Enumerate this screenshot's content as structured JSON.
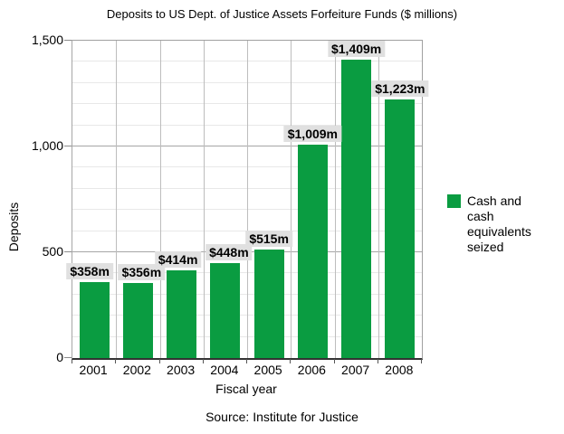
{
  "chart_data": {
    "type": "bar",
    "title": "Deposits to US Dept. of Justice Assets Forfeiture Funds ($ millions)",
    "categories": [
      "2001",
      "2002",
      "2003",
      "2004",
      "2005",
      "2006",
      "2007",
      "2008"
    ],
    "values": [
      358,
      356,
      414,
      448,
      515,
      1009,
      1409,
      1223
    ],
    "bar_labels": [
      "$358m",
      "$356m",
      "$414m",
      "$448m",
      "$515m",
      "$1,009m",
      "$1,409m",
      "$1,223m"
    ],
    "xlabel": "Fiscal year",
    "ylabel": "Deposits",
    "ylim": [
      0,
      1500
    ],
    "ytick_major_interval": 500,
    "ytick_minor_interval": 100,
    "ytick_labels": [
      "0",
      "500",
      "1,000",
      "1,500"
    ],
    "grid": true,
    "legend": {
      "position": "right",
      "label": "Cash and cash equivalents seized",
      "color": "#0a9c41"
    },
    "colors": {
      "bar": "#0a9c41",
      "label_chip_bg": "#e0e0e0",
      "grid_major": "#a6a6a6",
      "grid_minor": "#e8e8e8",
      "grid_vertical": "#bdbdbd",
      "axis_line": "#333333"
    }
  },
  "source": "Source: Institute for Justice"
}
